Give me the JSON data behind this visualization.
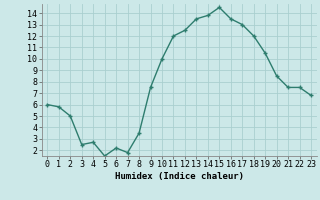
{
  "x": [
    0,
    1,
    2,
    3,
    4,
    5,
    6,
    7,
    8,
    9,
    10,
    11,
    12,
    13,
    14,
    15,
    16,
    17,
    18,
    19,
    20,
    21,
    22,
    23
  ],
  "y": [
    6.0,
    5.8,
    5.0,
    2.5,
    2.7,
    1.5,
    2.2,
    1.8,
    3.5,
    7.5,
    10.0,
    12.0,
    12.5,
    13.5,
    13.8,
    14.5,
    13.5,
    13.0,
    12.0,
    10.5,
    8.5,
    7.5,
    7.5,
    6.8
  ],
  "line_color": "#2e7d6e",
  "marker": "+",
  "marker_size": 3,
  "marker_lw": 1.0,
  "line_width": 1.0,
  "bg_color": "#cce8e8",
  "grid_color": "#aacfcf",
  "xlabel": "Humidex (Indice chaleur)",
  "xlabel_fontsize": 6.5,
  "tick_fontsize": 6,
  "ylim": [
    1.5,
    14.8
  ],
  "xlim": [
    -0.5,
    23.5
  ],
  "yticks": [
    2,
    3,
    4,
    5,
    6,
    7,
    8,
    9,
    10,
    11,
    12,
    13,
    14
  ],
  "xticks": [
    0,
    1,
    2,
    3,
    4,
    5,
    6,
    7,
    8,
    9,
    10,
    11,
    12,
    13,
    14,
    15,
    16,
    17,
    18,
    19,
    20,
    21,
    22,
    23
  ]
}
